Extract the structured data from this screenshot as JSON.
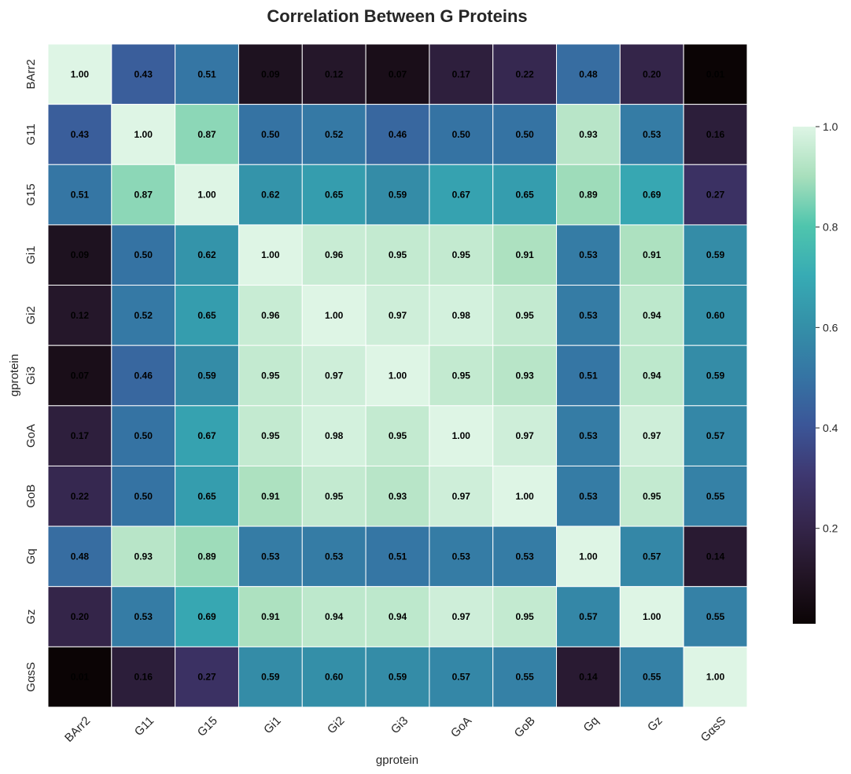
{
  "chart_data": {
    "type": "heatmap",
    "title": "Correlation Between G Proteins",
    "xlabel": "gprotein",
    "ylabel": "gprotein",
    "categories": [
      "BArr2",
      "G11",
      "G15",
      "Gi1",
      "Gi2",
      "Gi3",
      "GoA",
      "GoB",
      "Gq",
      "Gz",
      "GαsS"
    ],
    "values": [
      [
        1.0,
        0.43,
        0.51,
        0.09,
        0.12,
        0.07,
        0.17,
        0.22,
        0.48,
        0.2,
        0.01
      ],
      [
        0.43,
        1.0,
        0.87,
        0.5,
        0.52,
        0.46,
        0.5,
        0.5,
        0.93,
        0.53,
        0.16
      ],
      [
        0.51,
        0.87,
        1.0,
        0.62,
        0.65,
        0.59,
        0.67,
        0.65,
        0.89,
        0.69,
        0.27
      ],
      [
        0.09,
        0.5,
        0.62,
        1.0,
        0.96,
        0.95,
        0.95,
        0.91,
        0.53,
        0.91,
        0.59
      ],
      [
        0.12,
        0.52,
        0.65,
        0.96,
        1.0,
        0.97,
        0.98,
        0.95,
        0.53,
        0.94,
        0.6
      ],
      [
        0.07,
        0.46,
        0.59,
        0.95,
        0.97,
        1.0,
        0.95,
        0.93,
        0.51,
        0.94,
        0.59
      ],
      [
        0.17,
        0.5,
        0.67,
        0.95,
        0.98,
        0.95,
        1.0,
        0.97,
        0.53,
        0.97,
        0.57
      ],
      [
        0.22,
        0.5,
        0.65,
        0.91,
        0.95,
        0.93,
        0.97,
        1.0,
        0.53,
        0.95,
        0.55
      ],
      [
        0.48,
        0.93,
        0.89,
        0.53,
        0.53,
        0.51,
        0.53,
        0.53,
        1.0,
        0.57,
        0.14
      ],
      [
        0.2,
        0.53,
        0.69,
        0.91,
        0.94,
        0.94,
        0.97,
        0.95,
        0.57,
        1.0,
        0.55
      ],
      [
        0.01,
        0.16,
        0.27,
        0.59,
        0.6,
        0.59,
        0.57,
        0.55,
        0.14,
        0.55,
        1.0
      ]
    ],
    "value_format": "2 decimals",
    "colormap": "mako",
    "colorbar": {
      "range": [
        0.01,
        1.0
      ],
      "ticks": [
        0.2,
        0.4,
        0.6,
        0.8,
        1.0
      ],
      "tick_labels": [
        "0.2",
        "0.4",
        "0.6",
        "0.8",
        "1.0"
      ]
    },
    "colormap_stops": [
      [
        0.0,
        "#0b0405"
      ],
      [
        0.1,
        "#231526"
      ],
      [
        0.2,
        "#35264c"
      ],
      [
        0.3,
        "#3e3871"
      ],
      [
        0.4,
        "#3b5698"
      ],
      [
        0.5,
        "#3575a4"
      ],
      [
        0.6,
        "#3490a8"
      ],
      [
        0.7,
        "#37abb4"
      ],
      [
        0.8,
        "#4fc5ad"
      ],
      [
        0.9,
        "#a8dfbc"
      ],
      [
        1.0,
        "#def5e5"
      ]
    ],
    "grid_line_color": "#ffffff",
    "legend": "colorbar right"
  }
}
